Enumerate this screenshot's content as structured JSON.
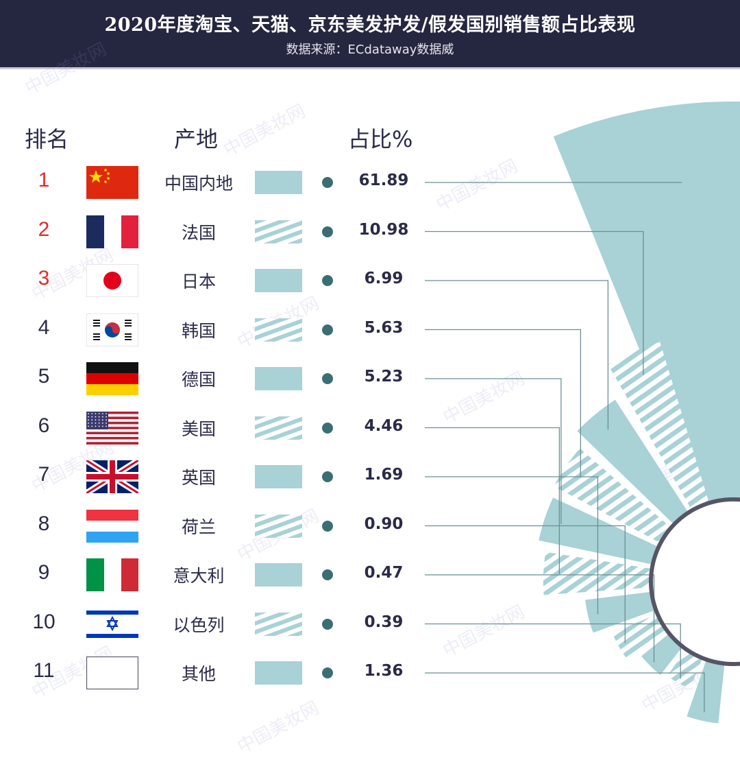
{
  "header": {
    "title": "2020年度淘宝、天猫、京东美发护发/假发国别销售额占比表现",
    "subtitle": "数据来源：ECdataway数据威"
  },
  "columns": {
    "rank": "排名",
    "origin": "产地",
    "share": "占比%"
  },
  "watermark": {
    "text": "中国美妆网",
    "url": "www.chinabeauty.cn"
  },
  "colors": {
    "header_bg": "#25263f",
    "accent": "#a8d2d5",
    "dot": "#3a6e72",
    "top_rank": "#e02b2b",
    "text": "#2a2b48"
  },
  "chart_data": {
    "type": "table",
    "categories": [
      "中国内地",
      "法国",
      "日本",
      "韩国",
      "德国",
      "美国",
      "英国",
      "荷兰",
      "意大利",
      "以色列",
      "其他"
    ],
    "values": [
      61.89,
      10.98,
      6.99,
      5.63,
      5.23,
      4.46,
      1.69,
      0.9,
      0.47,
      0.39,
      1.36
    ],
    "rows": [
      {
        "rank": "1",
        "origin": "中国内地",
        "share": "61.89",
        "flag": "china-flag-icon",
        "fill": "solid"
      },
      {
        "rank": "2",
        "origin": "法国",
        "share": "10.98",
        "flag": "france-flag-icon",
        "fill": "striped"
      },
      {
        "rank": "3",
        "origin": "日本",
        "share": "6.99",
        "flag": "japan-flag-icon",
        "fill": "solid"
      },
      {
        "rank": "4",
        "origin": "韩国",
        "share": "5.63",
        "flag": "korea-flag-icon",
        "fill": "striped"
      },
      {
        "rank": "5",
        "origin": "德国",
        "share": "5.23",
        "flag": "germany-flag-icon",
        "fill": "solid"
      },
      {
        "rank": "6",
        "origin": "美国",
        "share": "4.46",
        "flag": "usa-flag-icon",
        "fill": "striped"
      },
      {
        "rank": "7",
        "origin": "英国",
        "share": "1.69",
        "flag": "uk-flag-icon",
        "fill": "solid"
      },
      {
        "rank": "8",
        "origin": "荷兰",
        "share": "0.90",
        "flag": "netherlands-flag-icon",
        "fill": "striped"
      },
      {
        "rank": "9",
        "origin": "意大利",
        "share": "0.47",
        "flag": "italy-flag-icon",
        "fill": "solid"
      },
      {
        "rank": "10",
        "origin": "以色列",
        "share": "0.39",
        "flag": "israel-flag-icon",
        "fill": "striped"
      },
      {
        "rank": "11",
        "origin": "其他",
        "share": "1.36",
        "flag": "blank-flag-icon",
        "fill": "solid"
      }
    ]
  }
}
